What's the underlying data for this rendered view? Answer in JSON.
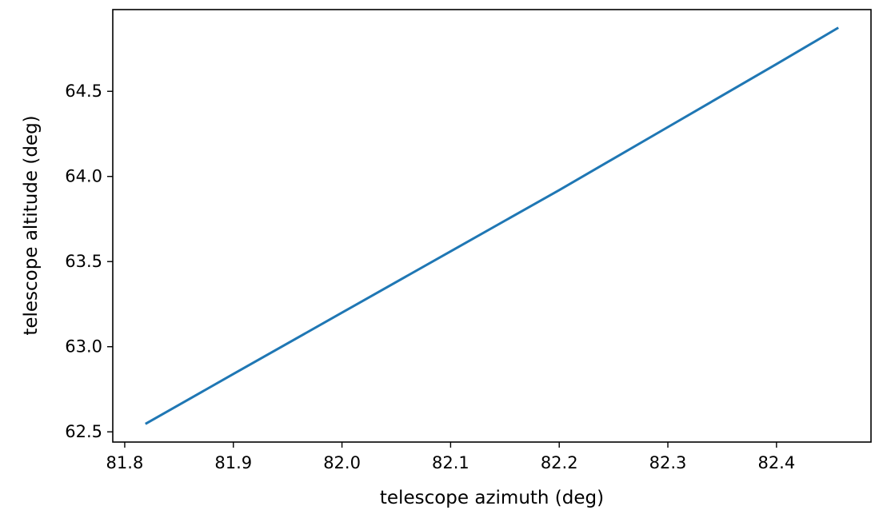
{
  "chart_data": {
    "type": "line",
    "title": "",
    "xlabel": "telescope azimuth (deg)",
    "ylabel": "telescope altitude (deg)",
    "xlim": [
      81.789,
      82.487
    ],
    "ylim": [
      62.44,
      64.98
    ],
    "xticks": [
      "81.8",
      "81.9",
      "82.0",
      "82.1",
      "82.2",
      "82.3",
      "82.4"
    ],
    "yticks": [
      "62.5",
      "63.0",
      "63.5",
      "64.0",
      "64.5"
    ],
    "grid": false,
    "series": [
      {
        "color": "#1f77b4",
        "x": [
          81.82,
          81.9,
          82.0,
          82.1,
          82.2,
          82.3,
          82.4,
          82.456
        ],
        "y": [
          62.55,
          62.84,
          63.2,
          63.56,
          63.92,
          64.29,
          64.66,
          64.87
        ]
      }
    ]
  }
}
